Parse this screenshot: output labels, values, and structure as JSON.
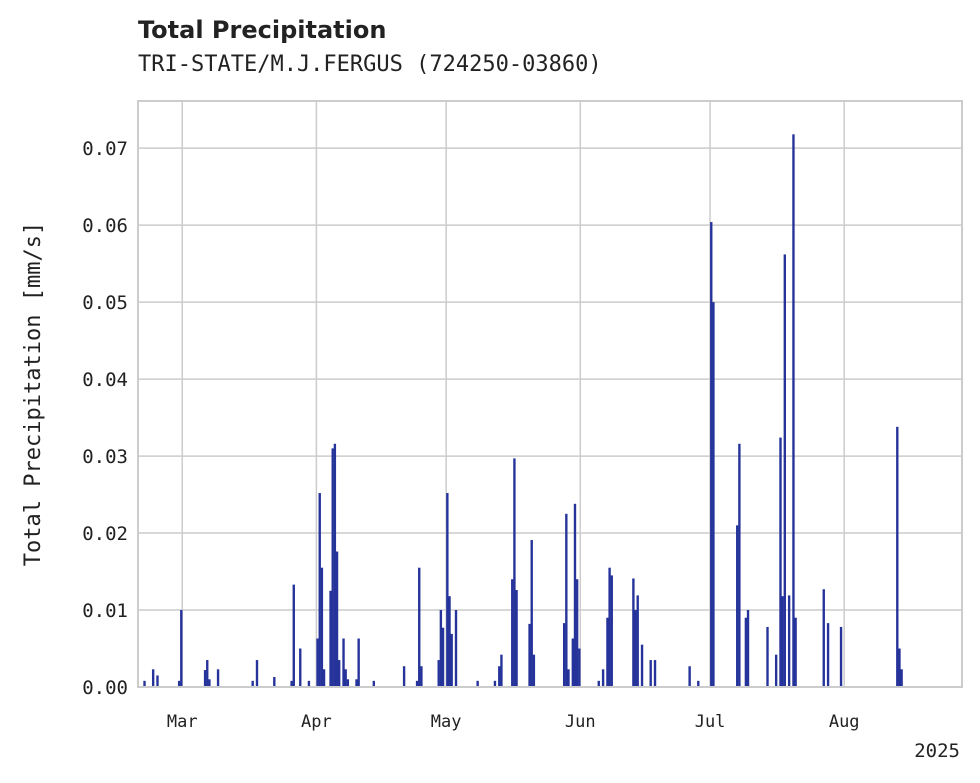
{
  "chart_data": {
    "type": "bar",
    "title": "Total Precipitation",
    "subtitle": "TRI-STATE/M.J.FERGUS (724250-03860)",
    "ylabel": "Total Precipitation [mm/s]",
    "xlabel": "",
    "year_label": "2025",
    "ylim": [
      0,
      0.076
    ],
    "xlim": [
      "2025-02-19",
      "2025-08-28"
    ],
    "grid": true,
    "bar_color": "#25339a",
    "y_ticks": [
      {
        "value": 0,
        "label": "0.00"
      },
      {
        "value": 0.01,
        "label": "0.01"
      },
      {
        "value": 0.02,
        "label": "0.02"
      },
      {
        "value": 0.03,
        "label": "0.03"
      },
      {
        "value": 0.04,
        "label": "0.04"
      },
      {
        "value": 0.05,
        "label": "0.05"
      },
      {
        "value": 0.06,
        "label": "0.06"
      },
      {
        "value": 0.07,
        "label": "0.07"
      }
    ],
    "x_ticks": [
      {
        "date": "2025-03-01",
        "label": "Mar"
      },
      {
        "date": "2025-04-01",
        "label": "Apr"
      },
      {
        "date": "2025-05-01",
        "label": "May"
      },
      {
        "date": "2025-06-01",
        "label": "Jun"
      },
      {
        "date": "2025-07-01",
        "label": "Jul"
      },
      {
        "date": "2025-08-01",
        "label": "Aug"
      }
    ],
    "bars": [
      {
        "date": "2025-02-20",
        "value": 0.0008
      },
      {
        "date": "2025-02-22",
        "value": 0.0023
      },
      {
        "date": "2025-02-23",
        "value": 0.0015
      },
      {
        "date": "2025-02-28",
        "value": 0.0008
      },
      {
        "date": "2025-02-28T12:00",
        "value": 0.01
      },
      {
        "date": "2025-03-06",
        "value": 0.0022
      },
      {
        "date": "2025-03-06T12:00",
        "value": 0.0035
      },
      {
        "date": "2025-03-07",
        "value": 0.001
      },
      {
        "date": "2025-03-09",
        "value": 0.0023
      },
      {
        "date": "2025-03-17",
        "value": 0.0008
      },
      {
        "date": "2025-03-18",
        "value": 0.0035
      },
      {
        "date": "2025-03-22",
        "value": 0.0013
      },
      {
        "date": "2025-03-26",
        "value": 0.0008
      },
      {
        "date": "2025-03-26T12:00",
        "value": 0.0133
      },
      {
        "date": "2025-03-28",
        "value": 0.005
      },
      {
        "date": "2025-03-30",
        "value": 0.0008
      },
      {
        "date": "2025-04-01",
        "value": 0.0063
      },
      {
        "date": "2025-04-01T12:00",
        "value": 0.0252
      },
      {
        "date": "2025-04-02",
        "value": 0.0155
      },
      {
        "date": "2025-04-02T12:00",
        "value": 0.0023
      },
      {
        "date": "2025-04-04",
        "value": 0.0125
      },
      {
        "date": "2025-04-04T12:00",
        "value": 0.031
      },
      {
        "date": "2025-04-05",
        "value": 0.0316
      },
      {
        "date": "2025-04-05T12:00",
        "value": 0.0176
      },
      {
        "date": "2025-04-06",
        "value": 0.0035
      },
      {
        "date": "2025-04-07",
        "value": 0.0063
      },
      {
        "date": "2025-04-07T12:00",
        "value": 0.0023
      },
      {
        "date": "2025-04-08",
        "value": 0.001
      },
      {
        "date": "2025-04-10",
        "value": 0.001
      },
      {
        "date": "2025-04-10T12:00",
        "value": 0.0063
      },
      {
        "date": "2025-04-14",
        "value": 0.0008
      },
      {
        "date": "2025-04-21",
        "value": 0.0027
      },
      {
        "date": "2025-04-24",
        "value": 0.0008
      },
      {
        "date": "2025-04-24T12:00",
        "value": 0.0155
      },
      {
        "date": "2025-04-25",
        "value": 0.0027
      },
      {
        "date": "2025-04-29",
        "value": 0.0035
      },
      {
        "date": "2025-04-29T12:00",
        "value": 0.01
      },
      {
        "date": "2025-04-30",
        "value": 0.0077
      },
      {
        "date": "2025-05-01",
        "value": 0.0252
      },
      {
        "date": "2025-05-01T12:00",
        "value": 0.0118
      },
      {
        "date": "2025-05-02",
        "value": 0.0069
      },
      {
        "date": "2025-05-03",
        "value": 0.01
      },
      {
        "date": "2025-05-08",
        "value": 0.0008
      },
      {
        "date": "2025-05-12",
        "value": 0.0008
      },
      {
        "date": "2025-05-13",
        "value": 0.0027
      },
      {
        "date": "2025-05-13T12:00",
        "value": 0.0042
      },
      {
        "date": "2025-05-16",
        "value": 0.014
      },
      {
        "date": "2025-05-16T12:00",
        "value": 0.0297
      },
      {
        "date": "2025-05-17",
        "value": 0.0126
      },
      {
        "date": "2025-05-20",
        "value": 0.0082
      },
      {
        "date": "2025-05-20T12:00",
        "value": 0.0191
      },
      {
        "date": "2025-05-21",
        "value": 0.0042
      },
      {
        "date": "2025-05-28",
        "value": 0.0083
      },
      {
        "date": "2025-05-28T12:00",
        "value": 0.0225
      },
      {
        "date": "2025-05-29",
        "value": 0.0023
      },
      {
        "date": "2025-05-30",
        "value": 0.0063
      },
      {
        "date": "2025-05-30T12:00",
        "value": 0.0238
      },
      {
        "date": "2025-05-31",
        "value": 0.014
      },
      {
        "date": "2025-05-31T12:00",
        "value": 0.005
      },
      {
        "date": "2025-06-05",
        "value": 0.0008
      },
      {
        "date": "2025-06-06",
        "value": 0.0023
      },
      {
        "date": "2025-06-07",
        "value": 0.009
      },
      {
        "date": "2025-06-07T12:00",
        "value": 0.0155
      },
      {
        "date": "2025-06-08",
        "value": 0.0145
      },
      {
        "date": "2025-06-13",
        "value": 0.0141
      },
      {
        "date": "2025-06-13T12:00",
        "value": 0.01
      },
      {
        "date": "2025-06-14",
        "value": 0.0119
      },
      {
        "date": "2025-06-15",
        "value": 0.0055
      },
      {
        "date": "2025-06-17",
        "value": 0.0035
      },
      {
        "date": "2025-06-18",
        "value": 0.0035
      },
      {
        "date": "2025-06-26",
        "value": 0.0027
      },
      {
        "date": "2025-06-28",
        "value": 0.0008
      },
      {
        "date": "2025-07-01",
        "value": 0.0604
      },
      {
        "date": "2025-07-01T12:00",
        "value": 0.05
      },
      {
        "date": "2025-07-07",
        "value": 0.021
      },
      {
        "date": "2025-07-07T12:00",
        "value": 0.0316
      },
      {
        "date": "2025-07-09",
        "value": 0.009
      },
      {
        "date": "2025-07-09T12:00",
        "value": 0.01
      },
      {
        "date": "2025-07-14",
        "value": 0.0078
      },
      {
        "date": "2025-07-16",
        "value": 0.0042
      },
      {
        "date": "2025-07-17",
        "value": 0.0324
      },
      {
        "date": "2025-07-17T12:00",
        "value": 0.0118
      },
      {
        "date": "2025-07-18",
        "value": 0.0562
      },
      {
        "date": "2025-07-19",
        "value": 0.0119
      },
      {
        "date": "2025-07-20",
        "value": 0.0718
      },
      {
        "date": "2025-07-20T12:00",
        "value": 0.009
      },
      {
        "date": "2025-07-27",
        "value": 0.0127
      },
      {
        "date": "2025-07-28",
        "value": 0.0083
      },
      {
        "date": "2025-07-31",
        "value": 0.0078
      },
      {
        "date": "2025-08-13",
        "value": 0.0338
      },
      {
        "date": "2025-08-13T12:00",
        "value": 0.005
      },
      {
        "date": "2025-08-14",
        "value": 0.0023
      }
    ]
  }
}
